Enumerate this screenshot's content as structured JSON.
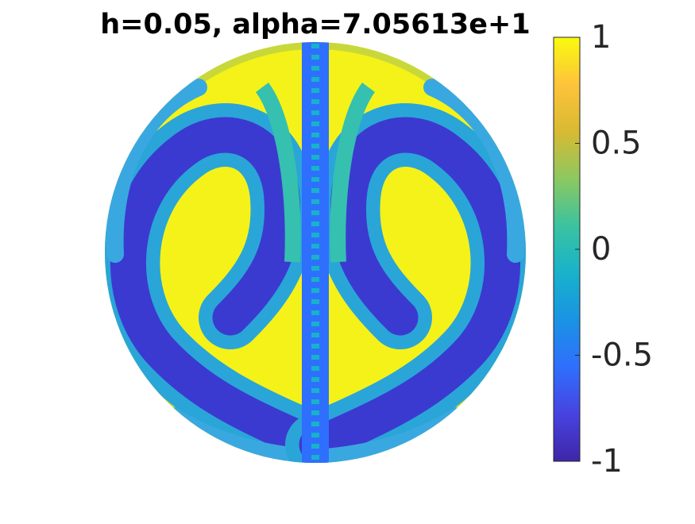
{
  "chart_data": {
    "type": "surface",
    "title": "h=0.05, alpha=7.05613e+1",
    "clim": [
      -1,
      1
    ],
    "cticks": [
      1,
      0.5,
      0,
      -0.5,
      -1
    ],
    "colormap": [
      "#3e26a8",
      "#4743e0",
      "#2f6ffd",
      "#1a93e4",
      "#18b2cb",
      "#3bc39f",
      "#8cc860",
      "#d8ba32",
      "#fec33b",
      "#f9fb0e"
    ]
  }
}
